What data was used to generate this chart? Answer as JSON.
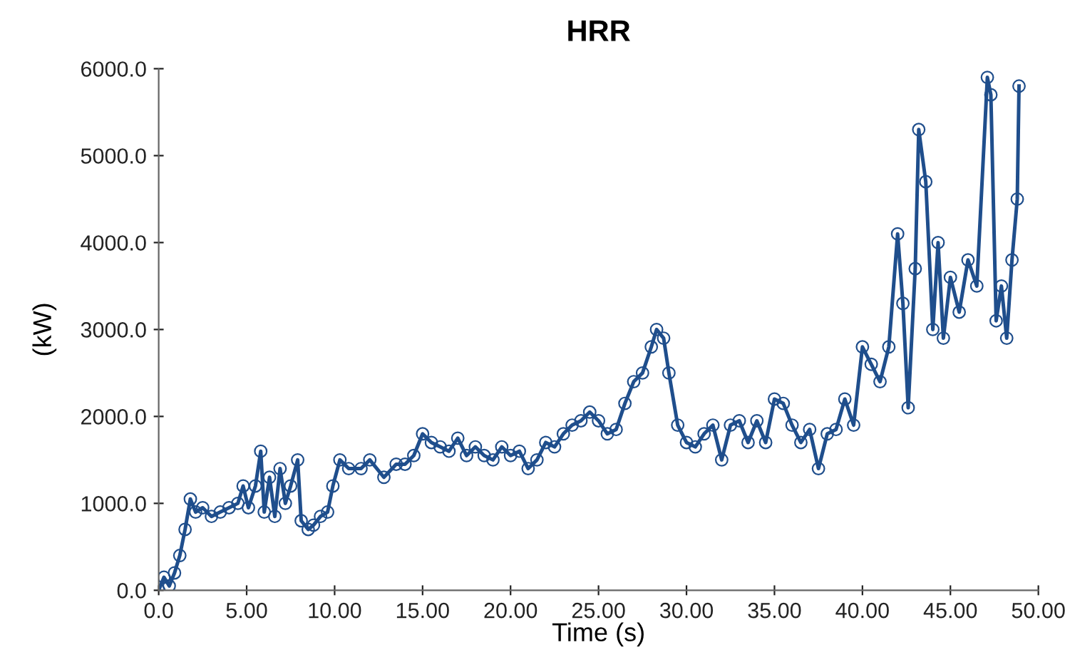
{
  "chart_data": {
    "type": "line",
    "title": "HRR",
    "xlabel": "Time (s)",
    "ylabel": "(kW)",
    "x": [
      0,
      0.3,
      0.6,
      0.9,
      1.2,
      1.5,
      1.8,
      2.1,
      2.5,
      3,
      3.5,
      4,
      4.5,
      4.8,
      5.1,
      5.5,
      5.8,
      6.0,
      6.3,
      6.6,
      6.9,
      7.2,
      7.5,
      7.9,
      8.1,
      8.5,
      8.8,
      9.2,
      9.6,
      9.9,
      10.3,
      10.8,
      11.5,
      12,
      12.8,
      13.5,
      14,
      14.5,
      15,
      15.5,
      16,
      16.5,
      17,
      17.5,
      18,
      18.5,
      19,
      19.5,
      20,
      20.5,
      21,
      21.5,
      22,
      22.5,
      23,
      23.5,
      24,
      24.5,
      25,
      25.5,
      26,
      26.5,
      27,
      27.5,
      28,
      28.3,
      28.7,
      29,
      29.5,
      30,
      30.5,
      31,
      31.5,
      32,
      32.5,
      33,
      33.5,
      34,
      34.5,
      35,
      35.5,
      36,
      36.5,
      37,
      37.5,
      38,
      38.5,
      39,
      39.5,
      40,
      40.5,
      41,
      41.5,
      42,
      42.3,
      42.6,
      43,
      43.2,
      43.6,
      44,
      44.3,
      44.6,
      45,
      45.5,
      46,
      46.5,
      47.1,
      47.3,
      47.6,
      47.9,
      48.2,
      48.5,
      48.8,
      48.9
    ],
    "series": [
      {
        "color": "#1f4e8c",
        "values": [
          0,
          150,
          50,
          200,
          400,
          700,
          1050,
          900,
          950,
          850,
          900,
          950,
          1000,
          1200,
          950,
          1200,
          1600,
          900,
          1300,
          850,
          1400,
          1000,
          1200,
          1500,
          800,
          700,
          750,
          850,
          900,
          1200,
          1500,
          1400,
          1400,
          1500,
          1300,
          1450,
          1450,
          1550,
          1800,
          1700,
          1650,
          1600,
          1750,
          1550,
          1650,
          1550,
          1500,
          1650,
          1550,
          1600,
          1400,
          1500,
          1700,
          1650,
          1800,
          1900,
          1950,
          2050,
          1950,
          1800,
          1850,
          2150,
          2400,
          2500,
          2800,
          3000,
          2900,
          2500,
          1900,
          1700,
          1650,
          1800,
          1900,
          1500,
          1900,
          1950,
          1700,
          1950,
          1700,
          2200,
          2150,
          1900,
          1700,
          1850,
          1400,
          1800,
          1850,
          2200,
          1900,
          2800,
          2600,
          2400,
          2800,
          4100,
          3300,
          2100,
          3700,
          5300,
          4700,
          3000,
          4000,
          2900,
          3600,
          3200,
          3800,
          3500,
          5900,
          5700,
          3100,
          3500,
          2900,
          3800,
          4500,
          5800
        ]
      }
    ],
    "marker": "circle",
    "grid": false,
    "legend": false,
    "xlim": [
      0,
      50
    ],
    "ylim": [
      0,
      6000
    ],
    "xticks": [
      {
        "value": 0,
        "label": "0.0"
      },
      {
        "value": 5,
        "label": "5.00"
      },
      {
        "value": 10,
        "label": "10.00"
      },
      {
        "value": 15,
        "label": "15.00"
      },
      {
        "value": 20,
        "label": "20.00"
      },
      {
        "value": 25,
        "label": "25.00"
      },
      {
        "value": 30,
        "label": "30.00"
      },
      {
        "value": 35,
        "label": "35.00"
      },
      {
        "value": 40,
        "label": "40.00"
      },
      {
        "value": 45,
        "label": "45.00"
      },
      {
        "value": 50,
        "label": "50.00"
      }
    ],
    "yticks": [
      {
        "value": 0,
        "label": "0.0"
      },
      {
        "value": 1000,
        "label": "1000.0"
      },
      {
        "value": 2000,
        "label": "2000.0"
      },
      {
        "value": 3000,
        "label": "3000.0"
      },
      {
        "value": 4000,
        "label": "4000.0"
      },
      {
        "value": 5000,
        "label": "5000.0"
      },
      {
        "value": 6000,
        "label": "6000.0"
      }
    ]
  }
}
